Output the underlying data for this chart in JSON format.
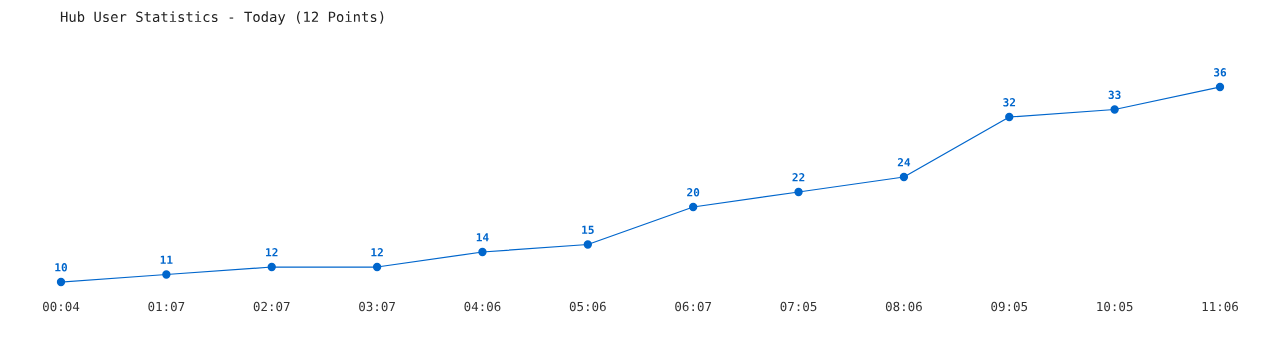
{
  "chart_data": {
    "type": "line",
    "title": "Hub User Statistics - Today (12 Points)",
    "categories": [
      "00:04",
      "01:07",
      "02:07",
      "03:07",
      "04:06",
      "05:06",
      "06:07",
      "07:05",
      "08:06",
      "09:05",
      "10:05",
      "11:06"
    ],
    "series": [
      {
        "color": "#0066cc",
        "values": [
          10,
          11,
          12,
          12,
          14,
          15,
          20,
          22,
          24,
          32,
          33,
          36
        ]
      }
    ],
    "data_labels": true,
    "marker": "circle",
    "line_style": "solid",
    "grid": false,
    "legend": false
  }
}
